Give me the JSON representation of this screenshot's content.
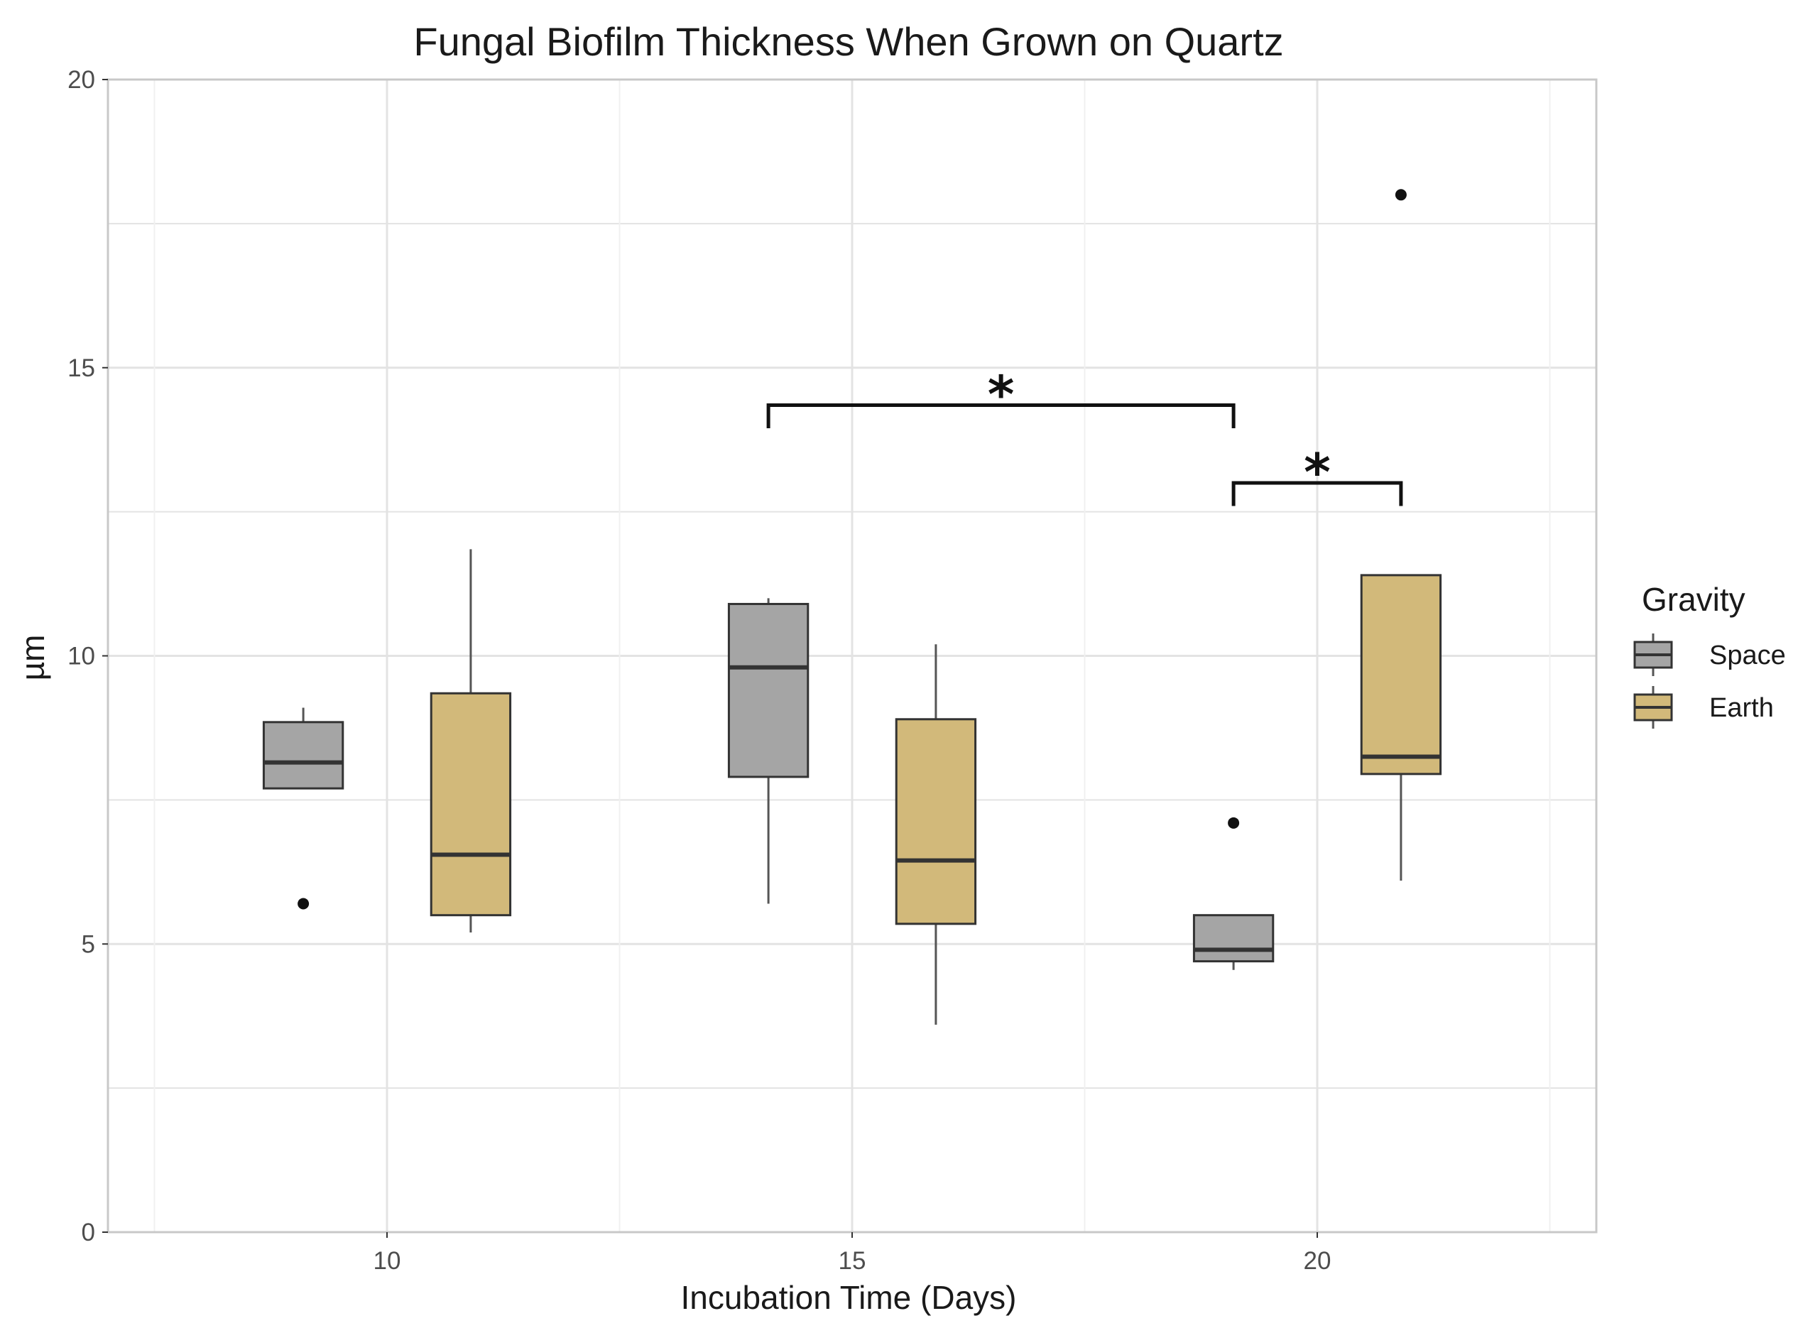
{
  "chart_data": {
    "type": "box",
    "title": "Fungal Biofilm Thickness When Grown on Quartz",
    "xlabel": "Incubation Time (Days)",
    "ylabel": "µm",
    "xlim": [
      7,
      23
    ],
    "ylim": [
      0,
      20
    ],
    "x_ticks": [
      10,
      15,
      20
    ],
    "y_ticks": [
      0,
      5,
      10,
      15,
      20
    ],
    "grid": true,
    "legend": {
      "title": "Gravity",
      "position": "right",
      "entries": [
        "Space",
        "Earth"
      ]
    },
    "colors": {
      "Space": "#a5a5a5",
      "Earth": "#d2b97a",
      "median": "#333333",
      "grid": "#e3e3e3",
      "border": "#c8c8c8"
    },
    "series": [
      {
        "name": "Space",
        "boxes": [
          {
            "x": 9.1,
            "whisker_low": 7.7,
            "q1": 7.7,
            "median": 8.15,
            "q3": 8.85,
            "whisker_high": 9.1,
            "outliers": [
              5.7
            ]
          },
          {
            "x": 14.1,
            "whisker_low": 5.7,
            "q1": 7.9,
            "median": 9.8,
            "q3": 10.9,
            "whisker_high": 11.0,
            "outliers": []
          },
          {
            "x": 19.1,
            "whisker_low": 4.55,
            "q1": 4.7,
            "median": 4.9,
            "q3": 5.5,
            "whisker_high": 5.5,
            "outliers": [
              7.1
            ]
          }
        ]
      },
      {
        "name": "Earth",
        "boxes": [
          {
            "x": 10.9,
            "whisker_low": 5.2,
            "q1": 5.5,
            "median": 6.55,
            "q3": 9.35,
            "whisker_high": 11.85,
            "outliers": []
          },
          {
            "x": 15.9,
            "whisker_low": 3.6,
            "q1": 5.35,
            "median": 6.45,
            "q3": 8.9,
            "whisker_high": 10.2,
            "outliers": []
          },
          {
            "x": 20.9,
            "whisker_low": 6.1,
            "q1": 7.95,
            "median": 8.25,
            "q3": 11.4,
            "whisker_high": 11.4,
            "outliers": [
              18.0
            ]
          }
        ]
      }
    ],
    "annotations": [
      {
        "text": "*",
        "x_start": 14.1,
        "x_end": 19.1,
        "y": 14.35,
        "tick_low": 13.95
      },
      {
        "text": "*",
        "x_start": 19.1,
        "x_end": 20.9,
        "y": 13.0,
        "tick_low": 12.6
      }
    ]
  }
}
